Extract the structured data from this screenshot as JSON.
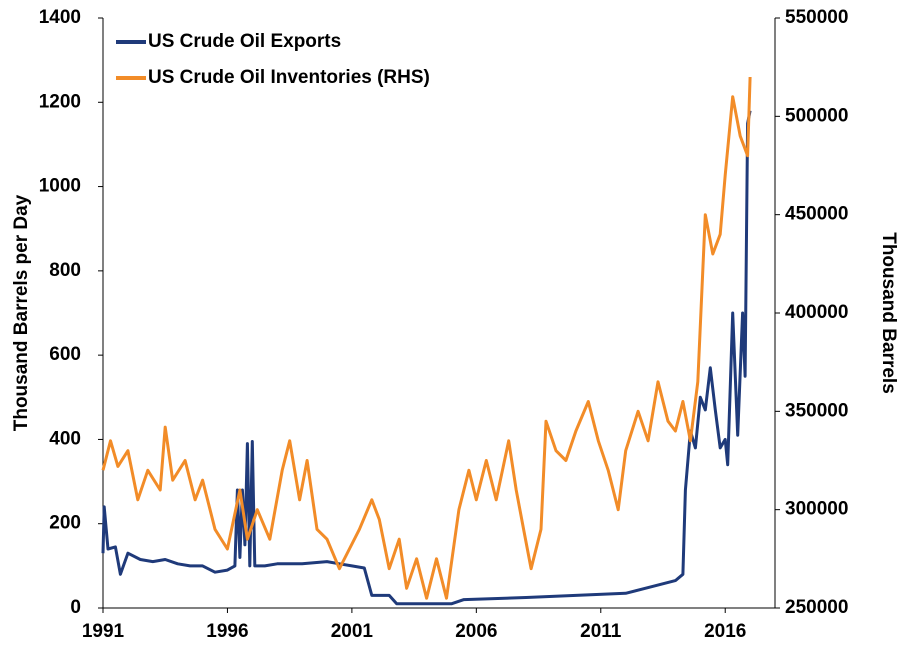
{
  "chart_data": {
    "type": "line",
    "y_label": "Thousand Barrels per Day",
    "y2_label": "Thousand Barrels",
    "xlim": [
      1991,
      2018
    ],
    "xticks": [
      1991,
      1996,
      2001,
      2006,
      2011,
      2016
    ],
    "ylim": [
      0,
      1400
    ],
    "yticks": [
      0,
      200,
      400,
      600,
      800,
      1000,
      1200,
      1400
    ],
    "y2lim": [
      250000,
      550000
    ],
    "y2ticks": [
      250000,
      300000,
      350000,
      400000,
      450000,
      500000,
      550000
    ],
    "legend": "top-left",
    "series": [
      {
        "name": "US Crude Oil Exports",
        "color": "#1f3a7a",
        "x": [
          1991.0,
          1991.05,
          1991.2,
          1991.5,
          1991.7,
          1992.0,
          1992.5,
          1993.0,
          1993.5,
          1994.0,
          1994.5,
          1995.0,
          1995.5,
          1996.0,
          1996.3,
          1996.4,
          1996.5,
          1996.6,
          1996.7,
          1996.8,
          1996.9,
          1997.0,
          1997.1,
          1997.5,
          1998.0,
          1999.0,
          2000.0,
          2000.5,
          2001.0,
          2001.5,
          2001.8,
          2002.5,
          2002.8,
          2005.0,
          2005.5,
          2008.0,
          2010.0,
          2012.0,
          2013.0,
          2014.0,
          2014.3,
          2014.4,
          2014.6,
          2014.8,
          2015.0,
          2015.2,
          2015.4,
          2015.6,
          2015.8,
          2016.0,
          2016.1,
          2016.3,
          2016.5,
          2016.7,
          2016.8,
          2016.9,
          2017.0
        ],
        "values": [
          130,
          240,
          140,
          145,
          80,
          130,
          115,
          110,
          115,
          105,
          100,
          100,
          85,
          90,
          100,
          280,
          120,
          280,
          150,
          390,
          100,
          395,
          100,
          100,
          105,
          105,
          110,
          105,
          100,
          95,
          30,
          30,
          10,
          10,
          20,
          25,
          30,
          35,
          50,
          65,
          80,
          280,
          420,
          380,
          500,
          470,
          570,
          470,
          380,
          400,
          340,
          700,
          410,
          700,
          550,
          1150,
          1180
        ]
      },
      {
        "name": "US Crude Oil Inventories (RHS)",
        "color": "#f28c28",
        "axis": "y2",
        "x": [
          1991.0,
          1991.3,
          1991.6,
          1992.0,
          1992.4,
          1992.8,
          1993.3,
          1993.5,
          1993.8,
          1994.3,
          1994.7,
          1995.0,
          1995.5,
          1996.0,
          1996.5,
          1996.8,
          1997.2,
          1997.7,
          1998.2,
          1998.5,
          1998.9,
          1999.2,
          1999.6,
          2000.0,
          2000.5,
          2000.9,
          2001.3,
          2001.8,
          2002.1,
          2002.5,
          2002.9,
          2003.2,
          2003.6,
          2004.0,
          2004.4,
          2004.8,
          2005.3,
          2005.7,
          2006.0,
          2006.4,
          2006.8,
          2007.3,
          2007.6,
          2007.9,
          2008.2,
          2008.6,
          2008.8,
          2009.2,
          2009.6,
          2010.0,
          2010.5,
          2010.9,
          2011.3,
          2011.7,
          2012.0,
          2012.5,
          2012.9,
          2013.3,
          2013.7,
          2014.0,
          2014.3,
          2014.6,
          2014.9,
          2015.2,
          2015.5,
          2015.8,
          2016.0,
          2016.3,
          2016.6,
          2016.9,
          2017.0
        ],
        "values": [
          320000,
          335000,
          322000,
          330000,
          305000,
          320000,
          310000,
          342000,
          315000,
          325000,
          305000,
          315000,
          290000,
          280000,
          310000,
          285000,
          300000,
          285000,
          320000,
          335000,
          305000,
          325000,
          290000,
          285000,
          270000,
          280000,
          290000,
          305000,
          295000,
          270000,
          285000,
          260000,
          275000,
          255000,
          275000,
          255000,
          300000,
          320000,
          305000,
          325000,
          305000,
          335000,
          310000,
          290000,
          270000,
          290000,
          345000,
          330000,
          325000,
          340000,
          355000,
          335000,
          320000,
          300000,
          330000,
          350000,
          335000,
          365000,
          345000,
          340000,
          355000,
          335000,
          365000,
          450000,
          430000,
          440000,
          470000,
          510000,
          490000,
          480000,
          520000
        ]
      }
    ]
  }
}
